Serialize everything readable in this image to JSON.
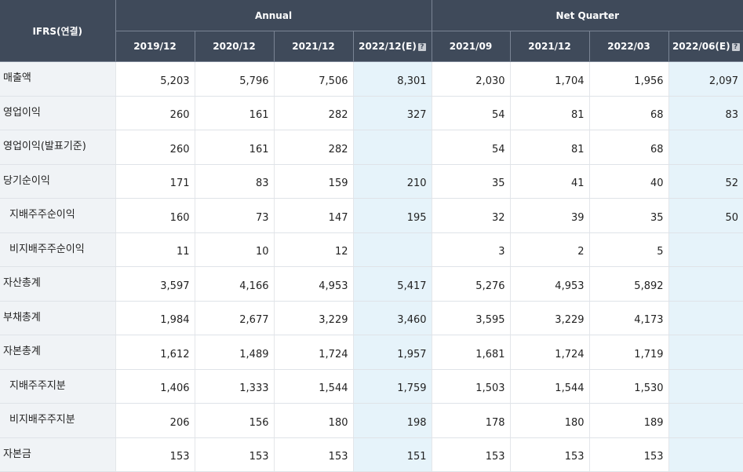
{
  "header": {
    "corner": "IFRS(연결)",
    "annual_label": "Annual",
    "quarter_label": "Net Quarter",
    "annual_periods": [
      "2019/12",
      "2020/12",
      "2021/12",
      "2022/12(E)"
    ],
    "quarter_periods": [
      "2021/09",
      "2021/12",
      "2022/03",
      "2022/06(E)"
    ],
    "estimate_icon": "question-icon",
    "estimate_icon_glyph": "?"
  },
  "rows": [
    {
      "label": "매출액",
      "annual": [
        "5,203",
        "5,796",
        "7,506",
        "8,301"
      ],
      "quarter": [
        "2,030",
        "1,704",
        "1,956",
        "2,097"
      ]
    },
    {
      "label": "영업이익",
      "annual": [
        "260",
        "161",
        "282",
        "327"
      ],
      "quarter": [
        "54",
        "81",
        "68",
        "83"
      ]
    },
    {
      "label": "영업이익(발표기준)",
      "annual": [
        "260",
        "161",
        "282",
        ""
      ],
      "quarter": [
        "54",
        "81",
        "68",
        ""
      ]
    },
    {
      "label": "당기순이익",
      "annual": [
        "171",
        "83",
        "159",
        "210"
      ],
      "quarter": [
        "35",
        "41",
        "40",
        "52"
      ]
    },
    {
      "label": "지배주주순이익",
      "annual": [
        "160",
        "73",
        "147",
        "195"
      ],
      "quarter": [
        "32",
        "39",
        "35",
        "50"
      ]
    },
    {
      "label": "비지배주주순이익",
      "annual": [
        "11",
        "10",
        "12",
        ""
      ],
      "quarter": [
        "3",
        "2",
        "5",
        ""
      ]
    },
    {
      "label": "자산총계",
      "annual": [
        "3,597",
        "4,166",
        "4,953",
        "5,417"
      ],
      "quarter": [
        "5,276",
        "4,953",
        "5,892",
        ""
      ]
    },
    {
      "label": "부채총계",
      "annual": [
        "1,984",
        "2,677",
        "3,229",
        "3,460"
      ],
      "quarter": [
        "3,595",
        "3,229",
        "4,173",
        ""
      ]
    },
    {
      "label": "자본총계",
      "annual": [
        "1,612",
        "1,489",
        "1,724",
        "1,957"
      ],
      "quarter": [
        "1,681",
        "1,724",
        "1,719",
        ""
      ]
    },
    {
      "label": "지배주주지분",
      "annual": [
        "1,406",
        "1,333",
        "1,544",
        "1,759"
      ],
      "quarter": [
        "1,503",
        "1,544",
        "1,530",
        ""
      ]
    },
    {
      "label": "비지배주주지분",
      "annual": [
        "206",
        "156",
        "180",
        "198"
      ],
      "quarter": [
        "178",
        "180",
        "189",
        ""
      ]
    },
    {
      "label": "자본금",
      "annual": [
        "153",
        "153",
        "153",
        "151"
      ],
      "quarter": [
        "153",
        "153",
        "153",
        ""
      ]
    }
  ]
}
